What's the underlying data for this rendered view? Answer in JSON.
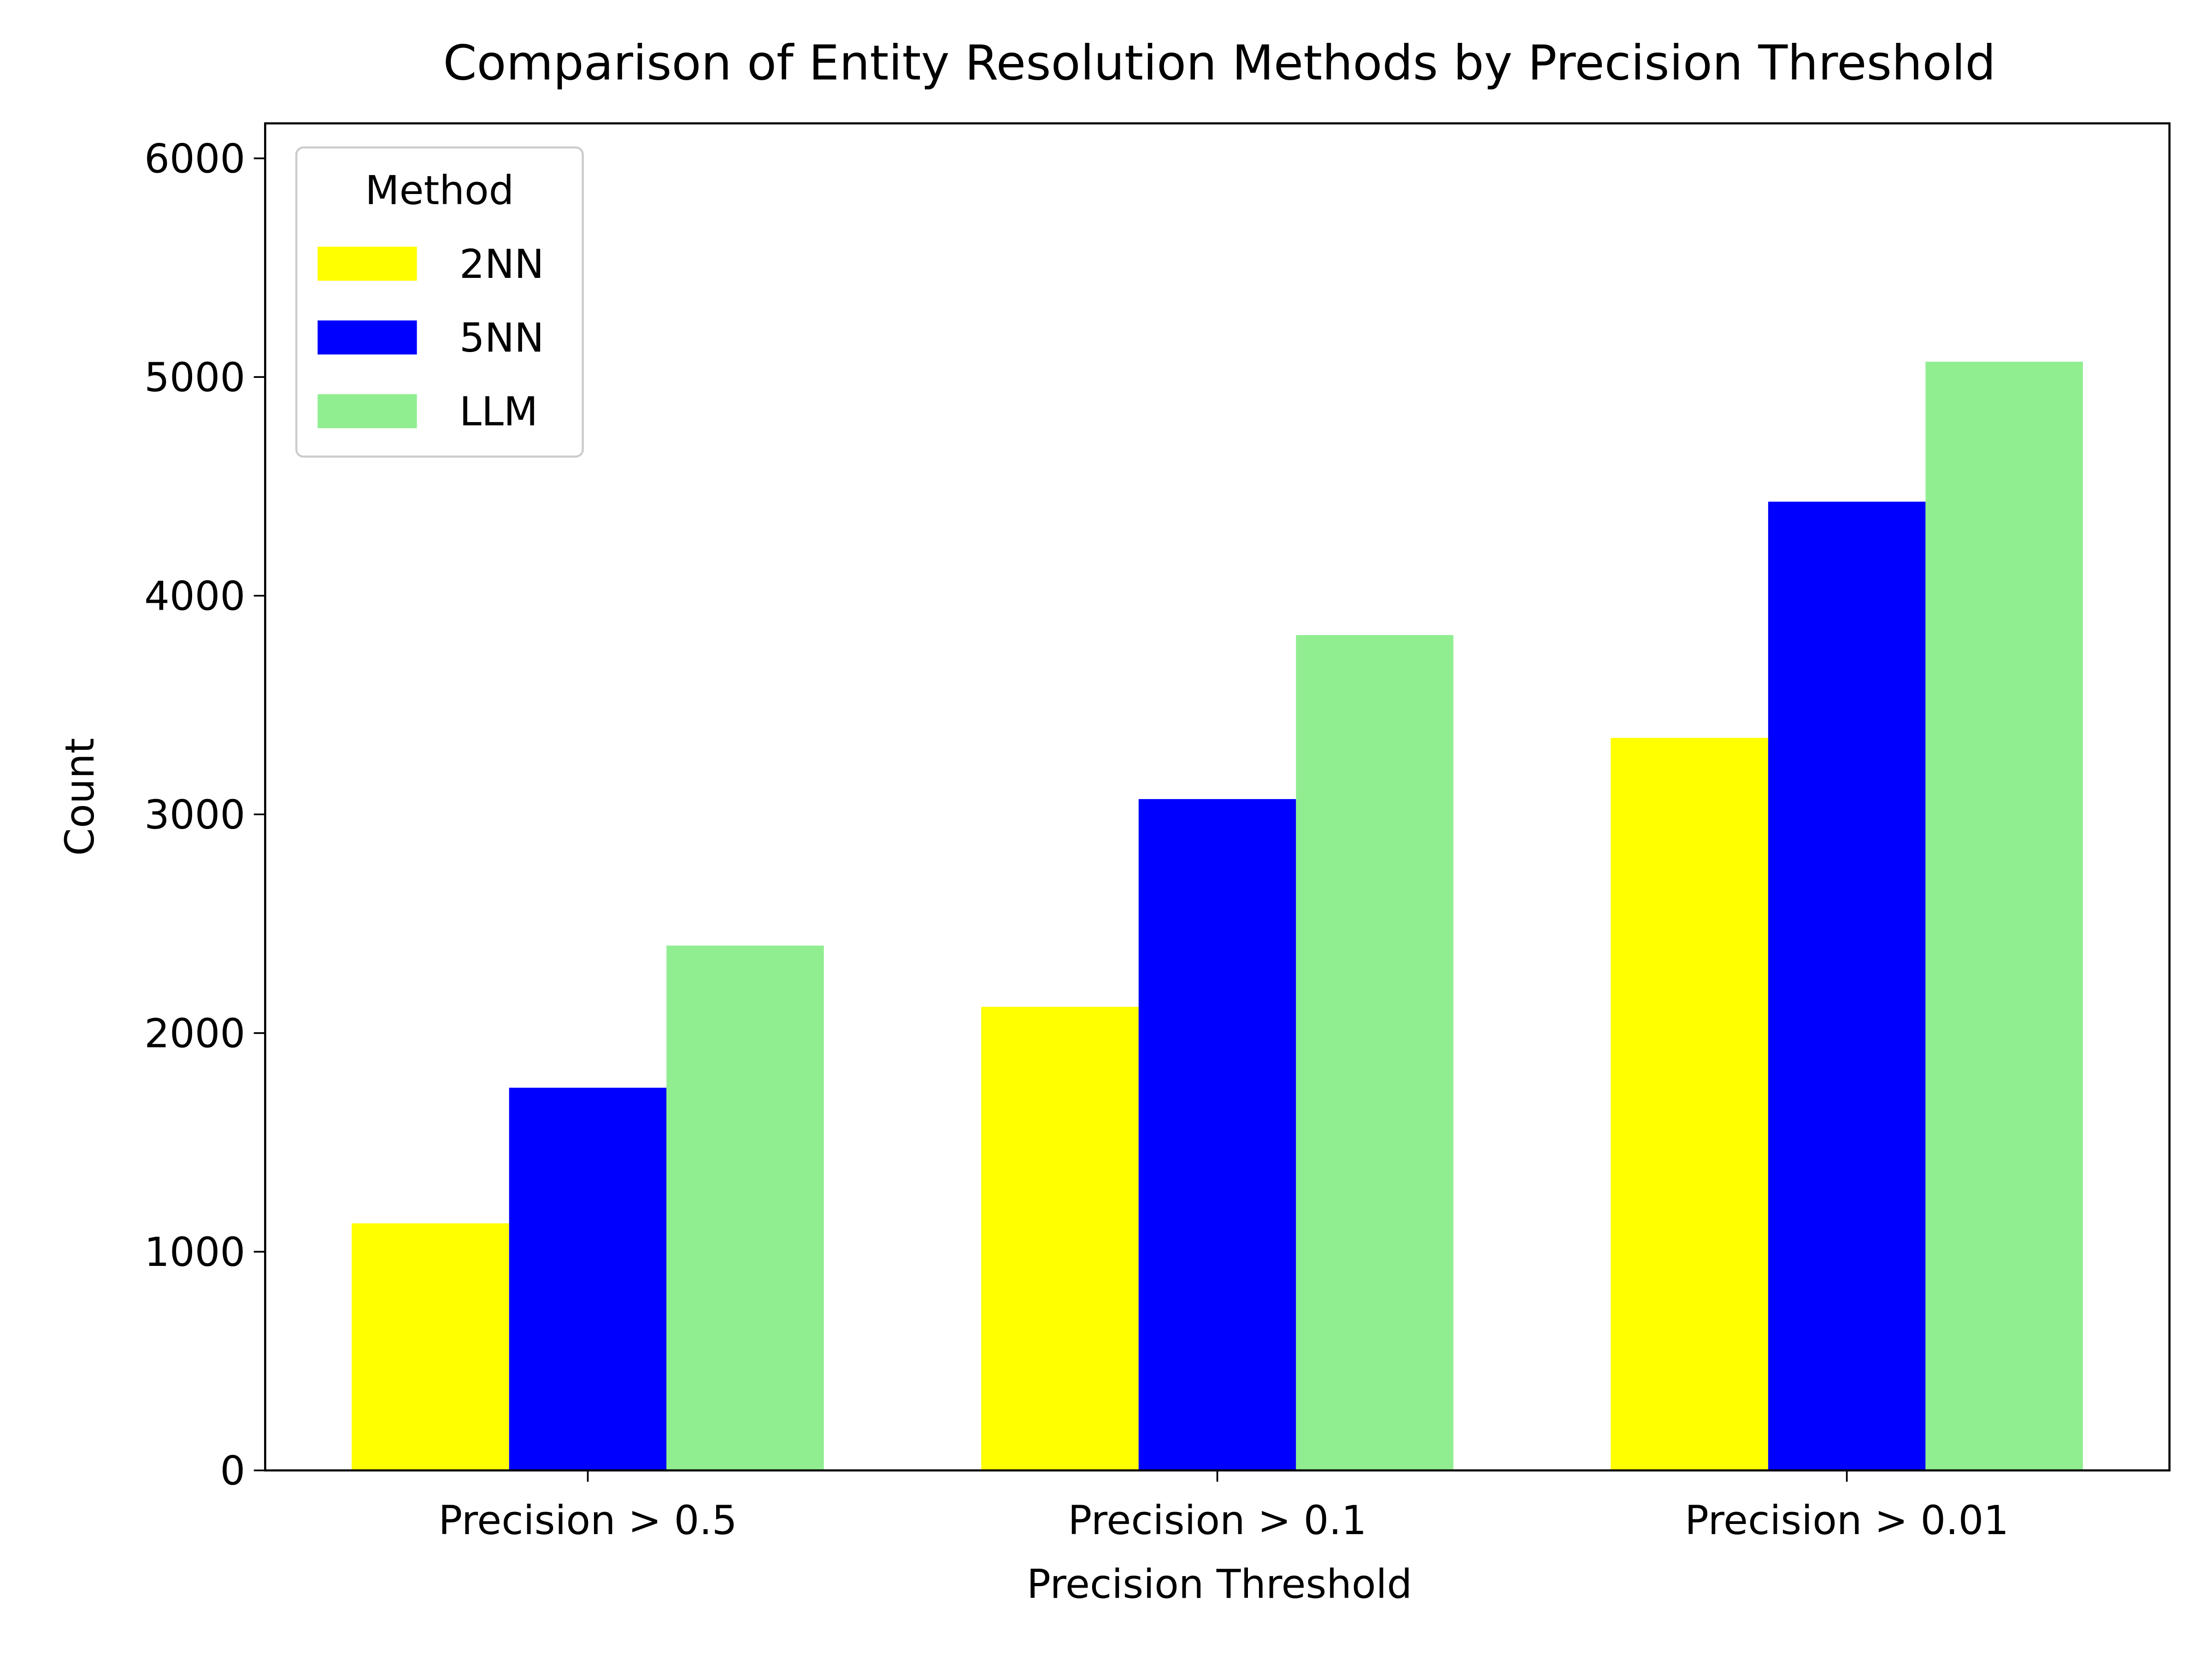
{
  "chart_data": {
    "type": "bar",
    "title": "Comparison of Entity Resolution Methods by Precision Threshold",
    "x_label": "Precision Threshold",
    "y_label": "Count",
    "categories": [
      "Precision > 0.5",
      "Precision > 0.1",
      "Precision > 0.01"
    ],
    "series": [
      {
        "name": "2NN",
        "color": "#ffff00",
        "values": [
          1130,
          2120,
          3350
        ]
      },
      {
        "name": "5NN",
        "color": "#0000ff",
        "values": [
          1750,
          3070,
          4430
        ]
      },
      {
        "name": "LLM",
        "color": "#90ee90",
        "values": [
          2400,
          3820,
          5070
        ]
      }
    ],
    "ylim": [
      0,
      6160
    ],
    "yticks": [
      0,
      1000,
      2000,
      3000,
      4000,
      5000,
      6000
    ],
    "grid": false,
    "legend_title": "Method",
    "legend_position": "upper left"
  }
}
